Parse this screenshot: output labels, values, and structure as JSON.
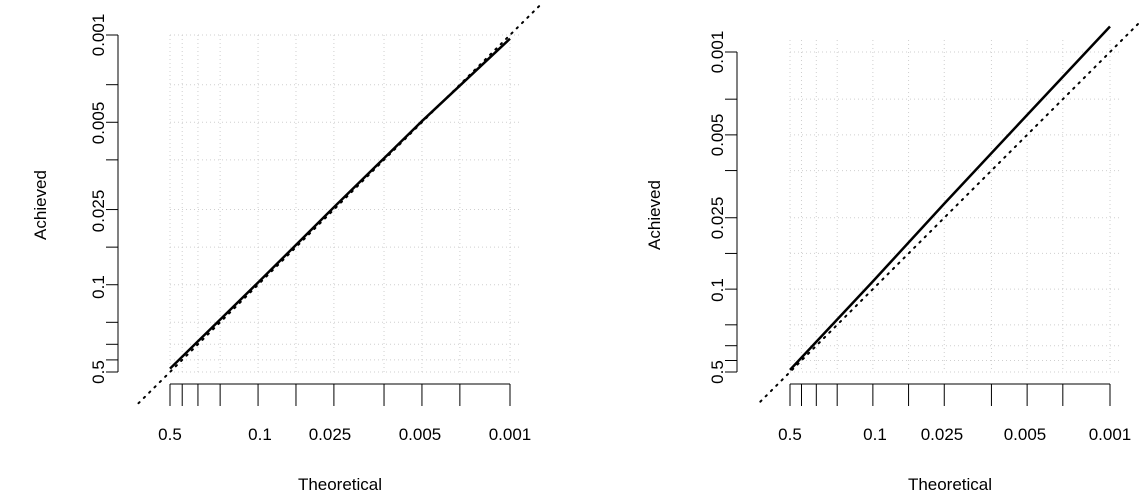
{
  "chart_data": [
    {
      "type": "line",
      "xlabel": "Theoretical",
      "ylabel": "Achieved",
      "x_scale": "log-reversed",
      "y_scale": "log-reversed",
      "xlim": [
        0.5,
        0.001
      ],
      "ylim": [
        0.5,
        0.001
      ],
      "x_tick_labels": [
        "0.5",
        "0.1",
        "0.025",
        "0.005",
        "0.001"
      ],
      "y_tick_labels": [
        "0.5",
        "0.1",
        "0.025",
        "0.005",
        "0.001"
      ],
      "grid": true,
      "reference_line": "y = x (dotted)",
      "series": [
        {
          "style": "solid",
          "x": [
            0.5,
            0.1,
            0.025,
            0.005,
            0.001
          ],
          "y": [
            0.47,
            0.096,
            0.024,
            0.0049,
            0.00107
          ]
        }
      ]
    },
    {
      "type": "line",
      "xlabel": "Theoretical",
      "ylabel": "Achieved",
      "x_scale": "log-reversed",
      "y_scale": "log-reversed",
      "xlim": [
        0.5,
        0.001
      ],
      "ylim": [
        0.5,
        0.001
      ],
      "x_tick_labels": [
        "0.5",
        "0.1",
        "0.025",
        "0.005",
        "0.001"
      ],
      "y_tick_labels": [
        "0.5",
        "0.1",
        "0.025",
        "0.005",
        "0.001"
      ],
      "grid": true,
      "reference_line": "y = x (dotted)",
      "series": [
        {
          "style": "solid",
          "x": [
            0.5,
            0.1,
            0.025,
            0.005,
            0.001
          ],
          "y": [
            0.48,
            0.086,
            0.019,
            0.0034,
            0.00061
          ]
        }
      ]
    }
  ]
}
